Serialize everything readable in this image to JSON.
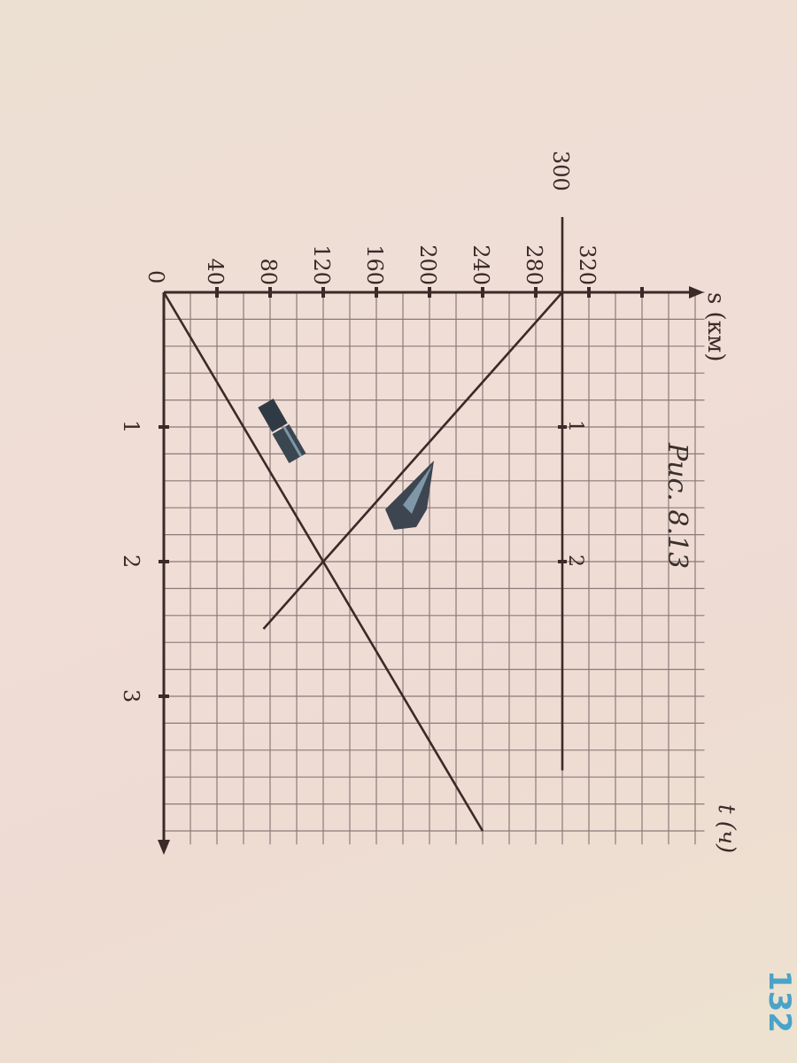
{
  "caption": "Рис. 8.13",
  "page_number": "132",
  "colors": {
    "ink": "#3a2a28",
    "grid": "#8a7a78",
    "page_number": "#4aa3c8",
    "paper": "#eedcd3"
  },
  "icons": [
    "train-icon",
    "airplane-icon"
  ],
  "chart_data": {
    "type": "line",
    "orientation": "rotated 90 degrees clockwise",
    "xlabel": "t (ч)",
    "ylabel": "s (км)",
    "origin_label": "0",
    "x_ticks": [
      "1",
      "2",
      "3"
    ],
    "y_ticks": [
      "40",
      "80",
      "120",
      "160",
      "200",
      "240",
      "280",
      "320"
    ],
    "y_extra_label": "300",
    "xlim": [
      0,
      4.1
    ],
    "ylim": [
      0,
      400
    ],
    "grid": true,
    "grid_step": {
      "t": 0.2,
      "s": 20
    },
    "series": [
      {
        "x": [
          0,
          4
        ],
        "y": [
          0,
          240
        ]
      },
      {
        "x": [
          0,
          2.5
        ],
        "y": [
          300,
          75
        ]
      },
      {
        "x": [
          0,
          3.55
        ],
        "y": [
          300,
          300
        ],
        "tick_labels": [
          "1",
          "2"
        ]
      }
    ],
    "intersection": {
      "t": 2,
      "s": 120
    }
  }
}
